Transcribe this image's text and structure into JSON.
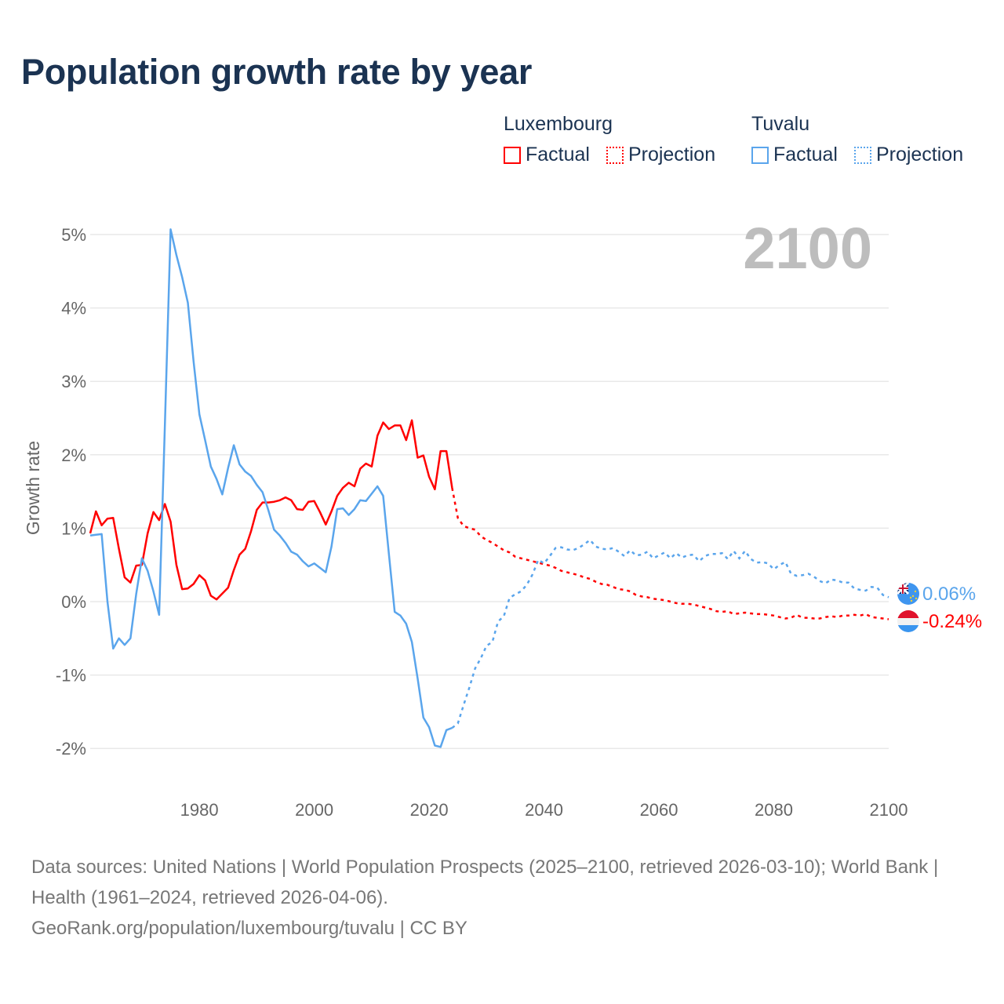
{
  "title": "Population growth rate by year",
  "legend": {
    "groups": [
      {
        "name": "Luxembourg",
        "color": "#ff0000",
        "factual": "Factual",
        "projection": "Projection"
      },
      {
        "name": "Tuvalu",
        "color": "#5aa5ec",
        "factual": "Factual",
        "projection": "Projection"
      }
    ]
  },
  "current_year_label": "2100",
  "end_labels": {
    "tuvalu": "0.06%",
    "luxembourg": "-0.24%"
  },
  "footer": {
    "sources": "Data sources: United Nations | World Population Prospects (2025–2100, retrieved 2026-03-10); World Bank | Health (1961–2024, retrieved 2026-04-06).",
    "link": "GeoRank.org/population/luxembourg/tuvalu",
    "license": " | CC BY"
  },
  "chart_data": {
    "type": "line",
    "title": "Population growth rate by year",
    "xlabel": "",
    "ylabel": "Growth rate",
    "xlim": [
      1961,
      2100
    ],
    "ylim": [
      -2.5,
      5.2
    ],
    "x_ticks": [
      1980,
      2000,
      2020,
      2040,
      2060,
      2080,
      2100
    ],
    "x_tick_labels": [
      "1980",
      "2000",
      "2020",
      "2040",
      "2060",
      "2080",
      "2100"
    ],
    "y_ticks": [
      5,
      4,
      3,
      2,
      1,
      0,
      -1,
      -2
    ],
    "y_tick_labels": [
      "5%",
      "4%",
      "3%",
      "2%",
      "1%",
      "0%",
      "-1%",
      "-2%"
    ],
    "grid": true,
    "legend_placement": "top-right",
    "series": [
      {
        "name": "Luxembourg",
        "color": "#ff0000",
        "factual_start": 1961,
        "factual": [
          0.93,
          1.23,
          1.04,
          1.13,
          1.14,
          0.72,
          0.33,
          0.26,
          0.49,
          0.5,
          0.93,
          1.22,
          1.11,
          1.33,
          1.09,
          0.5,
          0.17,
          0.18,
          0.24,
          0.36,
          0.29,
          0.08,
          0.03,
          0.11,
          0.19,
          0.43,
          0.64,
          0.72,
          0.96,
          1.25,
          1.35,
          1.35,
          1.36,
          1.38,
          1.42,
          1.38,
          1.26,
          1.25,
          1.36,
          1.37,
          1.22,
          1.05,
          1.23,
          1.44,
          1.55,
          1.62,
          1.57,
          1.81,
          1.88,
          1.84,
          2.26,
          2.44,
          2.35,
          2.4,
          2.4,
          2.2,
          2.47,
          1.96,
          1.99,
          1.7,
          1.53,
          2.05,
          2.05,
          1.55
        ],
        "projection_start": 2024,
        "projection": [
          1.55,
          1.14,
          1.03,
          1.0,
          0.98,
          0.89,
          0.84,
          0.8,
          0.75,
          0.7,
          0.67,
          0.61,
          0.59,
          0.57,
          0.55,
          0.53,
          0.51,
          0.49,
          0.46,
          0.42,
          0.4,
          0.38,
          0.36,
          0.33,
          0.31,
          0.27,
          0.24,
          0.23,
          0.2,
          0.17,
          0.16,
          0.14,
          0.09,
          0.07,
          0.06,
          0.04,
          0.03,
          0.02,
          0.0,
          -0.02,
          -0.03,
          -0.03,
          -0.04,
          -0.06,
          -0.08,
          -0.1,
          -0.13,
          -0.14,
          -0.13,
          -0.17,
          -0.16,
          -0.15,
          -0.16,
          -0.17,
          -0.17,
          -0.18,
          -0.19,
          -0.21,
          -0.23,
          -0.22,
          -0.18,
          -0.22,
          -0.22,
          -0.23,
          -0.23,
          -0.21,
          -0.2,
          -0.21,
          -0.19,
          -0.19,
          -0.18,
          -0.19,
          -0.17,
          -0.21,
          -0.22,
          -0.23,
          -0.24
        ]
      },
      {
        "name": "Tuvalu",
        "color": "#5aa5ec",
        "factual_start": 1961,
        "factual": [
          0.9,
          0.91,
          0.92,
          0.0,
          -0.64,
          -0.5,
          -0.59,
          -0.5,
          0.1,
          0.59,
          0.42,
          0.14,
          -0.18,
          2.4,
          5.07,
          4.72,
          4.42,
          4.07,
          3.27,
          2.55,
          2.2,
          1.84,
          1.67,
          1.46,
          1.82,
          2.13,
          1.87,
          1.77,
          1.71,
          1.59,
          1.49,
          1.25,
          0.98,
          0.9,
          0.8,
          0.68,
          0.64,
          0.55,
          0.48,
          0.52,
          0.46,
          0.4,
          0.75,
          1.26,
          1.27,
          1.18,
          1.26,
          1.38,
          1.37,
          1.47,
          1.57,
          1.44,
          0.65,
          -0.14,
          -0.19,
          -0.3,
          -0.55,
          -1.05,
          -1.58,
          -1.71,
          -1.96,
          -1.98,
          -1.75,
          -1.72
        ],
        "projection_start": 2024,
        "projection": [
          -1.72,
          -1.66,
          -1.41,
          -1.17,
          -0.91,
          -0.77,
          -0.6,
          -0.55,
          -0.27,
          -0.2,
          0.05,
          0.1,
          0.14,
          0.23,
          0.37,
          0.57,
          0.52,
          0.62,
          0.73,
          0.74,
          0.71,
          0.7,
          0.73,
          0.78,
          0.84,
          0.75,
          0.72,
          0.71,
          0.73,
          0.68,
          0.62,
          0.7,
          0.63,
          0.64,
          0.68,
          0.59,
          0.63,
          0.67,
          0.59,
          0.66,
          0.6,
          0.63,
          0.64,
          0.55,
          0.62,
          0.65,
          0.65,
          0.66,
          0.58,
          0.69,
          0.59,
          0.69,
          0.58,
          0.53,
          0.54,
          0.52,
          0.44,
          0.5,
          0.54,
          0.38,
          0.35,
          0.36,
          0.38,
          0.34,
          0.28,
          0.25,
          0.3,
          0.29,
          0.26,
          0.26,
          0.18,
          0.16,
          0.15,
          0.2,
          0.19,
          0.09,
          0.06
        ]
      }
    ]
  }
}
